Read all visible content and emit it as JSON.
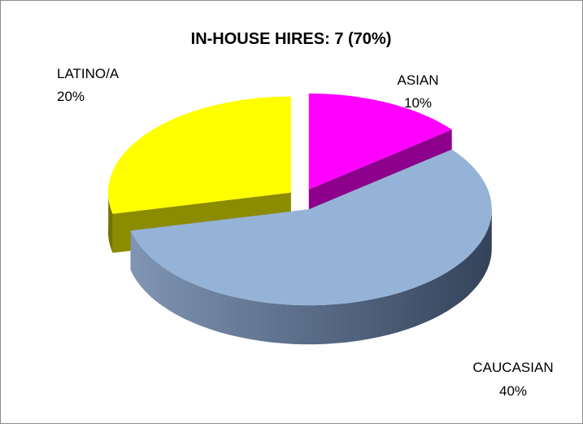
{
  "chart_data": {
    "type": "pie3d",
    "title": "IN-HOUSE HIRES:  7 (70%)",
    "categories": [
      "ASIAN",
      "CAUCASIAN",
      "LATINO/A"
    ],
    "values": [
      10,
      40,
      20
    ],
    "value_labels": [
      "10%",
      "40%",
      "20%"
    ],
    "colors": [
      "#ff00ff",
      "#95b3d7",
      "#ffff00"
    ]
  }
}
